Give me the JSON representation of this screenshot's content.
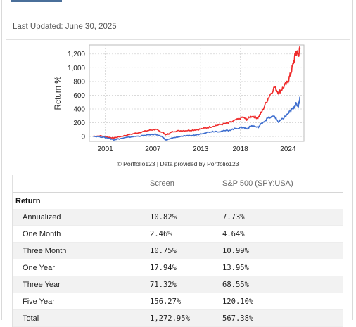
{
  "header": {
    "last_updated": "Last Updated: June 30, 2025"
  },
  "credit": "© Portfolio123 | Data provided by Portfolio123",
  "colors": {
    "screen": "#ef2a2a",
    "benchmark": "#3f6fcf",
    "grid": "#d4d4d4",
    "frame": "#bbbbbb"
  },
  "chart_data": {
    "type": "line",
    "ylabel": "Return %",
    "xlabel": "",
    "x_ticks": [
      "2001",
      "2007",
      "2013",
      "2018",
      "2024"
    ],
    "x_tick_values": [
      2001,
      2007,
      2013,
      2018,
      2024
    ],
    "y_ticks": [
      "0",
      "200",
      "400",
      "600",
      "800",
      "1,000",
      "1,200"
    ],
    "y_tick_values": [
      0,
      200,
      400,
      600,
      800,
      1000,
      1200
    ],
    "xlim": [
      1999,
      2026
    ],
    "ylim": [
      -70,
      1330
    ],
    "series": [
      {
        "color": "#ef2a2a",
        "points": [
          [
            1999.5,
            5
          ],
          [
            2000.5,
            10
          ],
          [
            2001.5,
            -12
          ],
          [
            2002,
            -22
          ],
          [
            2002.5,
            -10
          ],
          [
            2003.5,
            15
          ],
          [
            2004.5,
            40
          ],
          [
            2005.5,
            65
          ],
          [
            2006.5,
            90
          ],
          [
            2007.3,
            105
          ],
          [
            2007.8,
            80
          ],
          [
            2008.3,
            55
          ],
          [
            2008.6,
            25
          ],
          [
            2009.0,
            40
          ],
          [
            2009.5,
            75
          ],
          [
            2010.5,
            85
          ],
          [
            2011.5,
            90
          ],
          [
            2012.5,
            100
          ],
          [
            2013.5,
            120
          ],
          [
            2014.5,
            150
          ],
          [
            2015.5,
            175
          ],
          [
            2016.5,
            195
          ],
          [
            2017.5,
            240
          ],
          [
            2018.3,
            280
          ],
          [
            2018.8,
            250
          ],
          [
            2019.5,
            300
          ],
          [
            2020.2,
            270
          ],
          [
            2020.8,
            380
          ],
          [
            2021.5,
            560
          ],
          [
            2022.3,
            720
          ],
          [
            2022.8,
            640
          ],
          [
            2023.3,
            700
          ],
          [
            2023.9,
            780
          ],
          [
            2024.3,
            900
          ],
          [
            2024.7,
            1080
          ],
          [
            2025.0,
            1230
          ],
          [
            2025.3,
            1190
          ],
          [
            2025.5,
            1272
          ]
        ]
      },
      {
        "color": "#3f6fcf",
        "points": [
          [
            1999.5,
            5
          ],
          [
            2000.5,
            -5
          ],
          [
            2001.5,
            -25
          ],
          [
            2002,
            -45
          ],
          [
            2002.5,
            -38
          ],
          [
            2003.5,
            -18
          ],
          [
            2004.5,
            0
          ],
          [
            2005.5,
            10
          ],
          [
            2006.5,
            25
          ],
          [
            2007.3,
            35
          ],
          [
            2007.8,
            15
          ],
          [
            2008.3,
            -15
          ],
          [
            2008.6,
            -48
          ],
          [
            2009.0,
            -40
          ],
          [
            2009.5,
            -20
          ],
          [
            2010.5,
            5
          ],
          [
            2011.5,
            10
          ],
          [
            2012.5,
            25
          ],
          [
            2013.5,
            55
          ],
          [
            2014.5,
            75
          ],
          [
            2015.5,
            75
          ],
          [
            2016.5,
            90
          ],
          [
            2017.5,
            120
          ],
          [
            2018.3,
            135
          ],
          [
            2018.8,
            115
          ],
          [
            2019.5,
            160
          ],
          [
            2020.2,
            130
          ],
          [
            2020.8,
            205
          ],
          [
            2021.5,
            270
          ],
          [
            2022.3,
            295
          ],
          [
            2022.8,
            210
          ],
          [
            2023.3,
            255
          ],
          [
            2023.9,
            320
          ],
          [
            2024.3,
            370
          ],
          [
            2024.7,
            420
          ],
          [
            2025.0,
            470
          ],
          [
            2025.3,
            450
          ],
          [
            2025.5,
            567
          ]
        ]
      }
    ]
  },
  "table": {
    "columns": [
      "",
      "Screen",
      "S&P 500 (SPY:USA)"
    ],
    "section": "Return",
    "rows": [
      {
        "label": "Annualized",
        "screen": "10.82%",
        "benchmark": "7.73%"
      },
      {
        "label": "One Month",
        "screen": "2.46%",
        "benchmark": "4.64%"
      },
      {
        "label": "Three Month",
        "screen": "10.75%",
        "benchmark": "10.99%"
      },
      {
        "label": "One Year",
        "screen": "17.94%",
        "benchmark": "13.95%"
      },
      {
        "label": "Three Year",
        "screen": "71.32%",
        "benchmark": "68.55%"
      },
      {
        "label": "Five Year",
        "screen": "156.27%",
        "benchmark": "120.10%"
      },
      {
        "label": "Total",
        "screen": "1,272.95%",
        "benchmark": "567.38%"
      }
    ]
  }
}
